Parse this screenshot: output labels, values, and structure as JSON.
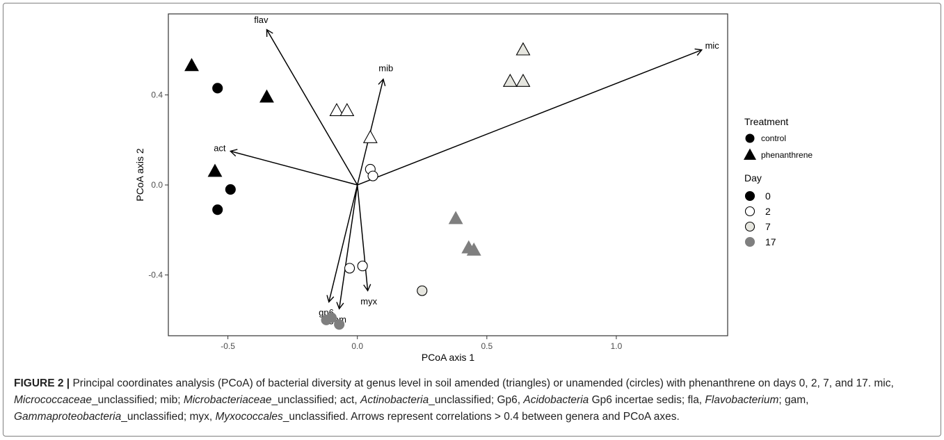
{
  "chart_data": {
    "type": "scatter",
    "title": "",
    "xlabel": "PCoA axis 1",
    "ylabel": "PCoA axis 2",
    "xlim": [
      -0.73,
      1.43
    ],
    "ylim": [
      -0.67,
      0.76
    ],
    "grid": false,
    "legend_position": "right",
    "xticks": [
      {
        "value": -0.5,
        "label": "-0.5"
      },
      {
        "value": 0.0,
        "label": "0.0"
      },
      {
        "value": 0.5,
        "label": "0.5"
      },
      {
        "value": 1.0,
        "label": "1.0"
      }
    ],
    "yticks": [
      {
        "value": -0.4,
        "label": "-0.4"
      },
      {
        "value": 0.0,
        "label": "0.0"
      },
      {
        "value": 0.4,
        "label": "0.4"
      }
    ],
    "day_colors": {
      "0": "#000000",
      "2": "#ffffff",
      "7": "#e6e6df",
      "17": "#7f7f7f"
    },
    "points": [
      {
        "treatment": "phenanthrene",
        "day": "0",
        "x": -0.64,
        "y": 0.53
      },
      {
        "treatment": "control",
        "day": "0",
        "x": -0.54,
        "y": 0.43
      },
      {
        "treatment": "phenanthrene",
        "day": "0",
        "x": -0.35,
        "y": 0.39
      },
      {
        "treatment": "phenanthrene",
        "day": "0",
        "x": -0.55,
        "y": 0.06
      },
      {
        "treatment": "control",
        "day": "0",
        "x": -0.49,
        "y": -0.02
      },
      {
        "treatment": "control",
        "day": "0",
        "x": -0.54,
        "y": -0.11
      },
      {
        "treatment": "phenanthrene",
        "day": "2",
        "x": -0.08,
        "y": 0.33
      },
      {
        "treatment": "phenanthrene",
        "day": "2",
        "x": -0.04,
        "y": 0.33
      },
      {
        "treatment": "phenanthrene",
        "day": "2",
        "x": 0.05,
        "y": 0.21
      },
      {
        "treatment": "control",
        "day": "2",
        "x": 0.05,
        "y": 0.07
      },
      {
        "treatment": "control",
        "day": "2",
        "x": 0.06,
        "y": 0.04
      },
      {
        "treatment": "control",
        "day": "2",
        "x": -0.03,
        "y": -0.37
      },
      {
        "treatment": "control",
        "day": "2",
        "x": 0.02,
        "y": -0.36
      },
      {
        "treatment": "phenanthrene",
        "day": "7",
        "x": 0.64,
        "y": 0.6
      },
      {
        "treatment": "phenanthrene",
        "day": "7",
        "x": 0.59,
        "y": 0.46
      },
      {
        "treatment": "phenanthrene",
        "day": "7",
        "x": 0.64,
        "y": 0.46
      },
      {
        "treatment": "control",
        "day": "7",
        "x": 0.25,
        "y": -0.47
      },
      {
        "treatment": "phenanthrene",
        "day": "17",
        "x": 0.38,
        "y": -0.15
      },
      {
        "treatment": "phenanthrene",
        "day": "17",
        "x": 0.43,
        "y": -0.28
      },
      {
        "treatment": "phenanthrene",
        "day": "17",
        "x": 0.45,
        "y": -0.29
      },
      {
        "treatment": "control",
        "day": "17",
        "x": -0.12,
        "y": -0.6
      },
      {
        "treatment": "control",
        "day": "17",
        "x": -0.1,
        "y": -0.59
      },
      {
        "treatment": "control",
        "day": "17",
        "x": -0.07,
        "y": -0.62
      }
    ],
    "vectors": [
      {
        "label": "flav",
        "x": -0.35,
        "y": 0.69
      },
      {
        "label": "mic",
        "x": 1.33,
        "y": 0.6
      },
      {
        "label": "mib",
        "x": 0.1,
        "y": 0.47
      },
      {
        "label": "act",
        "x": -0.49,
        "y": 0.15
      },
      {
        "label": "myx",
        "x": 0.04,
        "y": -0.47
      },
      {
        "label": "gp6",
        "x": -0.11,
        "y": -0.52
      },
      {
        "label": "gam",
        "x": -0.07,
        "y": -0.55
      }
    ],
    "legend": {
      "treatment_title": "Treatment",
      "treatment_items": [
        {
          "label": "control",
          "shape": "circle"
        },
        {
          "label": "phenanthrene",
          "shape": "triangle"
        }
      ],
      "day_title": "Day",
      "day_items": [
        {
          "label": "0",
          "color": "#000000"
        },
        {
          "label": "2",
          "color": "#ffffff"
        },
        {
          "label": "7",
          "color": "#e6e6df"
        },
        {
          "label": "17",
          "color": "#7f7f7f"
        }
      ]
    }
  },
  "caption": {
    "label": "FIGURE 2 |",
    "segments": [
      {
        "text": " Principal coordinates analysis (PCoA) of bacterial diversity at genus level in soil amended (triangles) or unamended (circles) with phenanthrene on days 0, 2, 7, and 17. mic, ",
        "italic": false
      },
      {
        "text": "Micrococcaceae",
        "italic": true
      },
      {
        "text": "_unclassified; mib; ",
        "italic": false
      },
      {
        "text": "Microbacteriaceae",
        "italic": true
      },
      {
        "text": "_unclassified; act, ",
        "italic": false
      },
      {
        "text": "Actinobacteria",
        "italic": true
      },
      {
        "text": "_unclassified; Gp6, ",
        "italic": false
      },
      {
        "text": "Acidobacteria",
        "italic": true
      },
      {
        "text": " Gp6 incertae sedis; fla, ",
        "italic": false
      },
      {
        "text": "Flavobacterium",
        "italic": true
      },
      {
        "text": "; gam, ",
        "italic": false
      },
      {
        "text": "Gammaproteobacteria",
        "italic": true
      },
      {
        "text": "_unclassified; myx, ",
        "italic": false
      },
      {
        "text": "Myxococcales",
        "italic": true
      },
      {
        "text": "_unclassified. Arrows represent correlations > 0.4 between genera and PCoA axes.",
        "italic": false
      }
    ]
  }
}
